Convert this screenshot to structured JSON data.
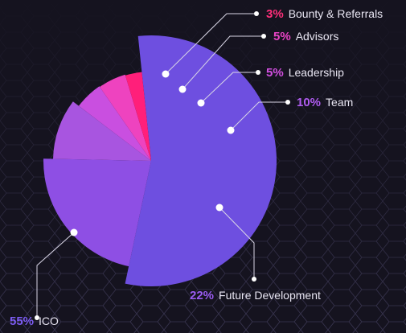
{
  "chart_data": {
    "type": "pie",
    "series": [
      {
        "label": "ICO",
        "value": 55,
        "value_text": "55%",
        "color": "#6e4fe0",
        "pct_color": "#7c5cf2"
      },
      {
        "label": "Future Development",
        "value": 22,
        "value_text": "22%",
        "color": "#8e4fe4",
        "pct_color": "#9a5cf2"
      },
      {
        "label": "Team",
        "value": 10,
        "value_text": "10%",
        "color": "#a855e0",
        "pct_color": "#b05cf0"
      },
      {
        "label": "Leadership",
        "value": 5,
        "value_text": "5%",
        "color": "#c94fe0",
        "pct_color": "#d24fe0"
      },
      {
        "label": "Advisors",
        "value": 5,
        "value_text": "5%",
        "color": "#ee43bf",
        "pct_color": "#e944c6"
      },
      {
        "label": "Bounty & Referrals",
        "value": 3,
        "value_text": "3%",
        "color": "#ff1f7a",
        "pct_color": "#ff2f7a"
      }
    ]
  }
}
